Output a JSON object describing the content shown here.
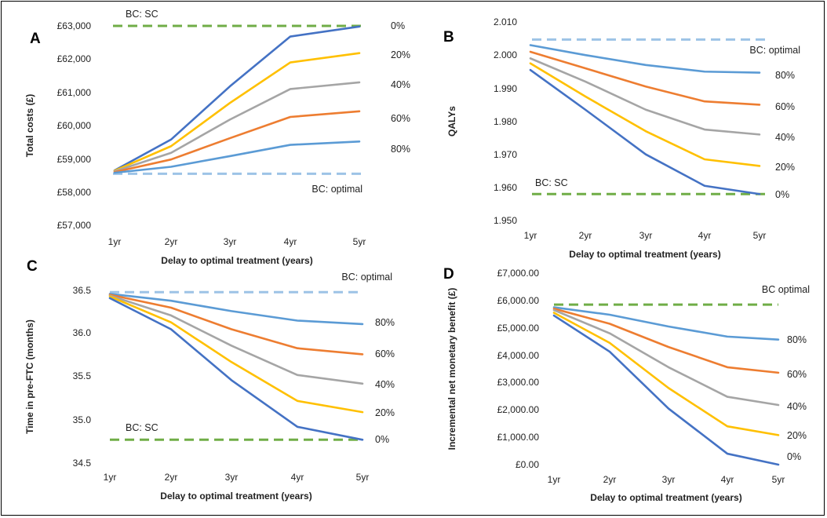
{
  "colors": {
    "0%": "#4472C4",
    "20%": "#FFC000",
    "40%": "#A5A5A5",
    "60%": "#ED7D31",
    "80%": "#5B9BD5",
    "ref_optimal": "#9DC3E6",
    "ref_sc": "#70AD47"
  },
  "chart_data": [
    {
      "id": "A",
      "type": "line",
      "panel_label": "A",
      "ylabel": "Total costs (£)",
      "xlabel": "Delay to optimal treatment (years)",
      "categories": [
        "1yr",
        "2yr",
        "3yr",
        "4yr",
        "5yr"
      ],
      "yticks": [
        "£57,000",
        "£58,000",
        "£59,000",
        "£60,000",
        "£61,000",
        "£62,000",
        "£63,000"
      ],
      "ylim": [
        57000,
        63000
      ],
      "series": [
        {
          "name": "0%",
          "color": "#4472C4",
          "values": [
            58650,
            59580,
            61180,
            62680,
            62980
          ]
        },
        {
          "name": "20%",
          "color": "#FFC000",
          "values": [
            58640,
            59380,
            60680,
            61900,
            62180
          ]
        },
        {
          "name": "40%",
          "color": "#A5A5A5",
          "values": [
            58620,
            59180,
            60180,
            61100,
            61300
          ]
        },
        {
          "name": "60%",
          "color": "#ED7D31",
          "values": [
            58600,
            58980,
            59620,
            60260,
            60430
          ]
        },
        {
          "name": "80%",
          "color": "#5B9BD5",
          "values": [
            58580,
            58760,
            59080,
            59420,
            59520
          ]
        }
      ],
      "reference_lines": [
        {
          "label": "BC: SC",
          "value": 63000,
          "color": "#70AD47"
        },
        {
          "label": "BC: optimal",
          "value": 58550,
          "color": "#9DC3E6"
        }
      ]
    },
    {
      "id": "B",
      "type": "line",
      "panel_label": "B",
      "ylabel": "QALYs",
      "xlabel": "Delay to optimal treatment (years)",
      "categories": [
        "1yr",
        "2yr",
        "3yr",
        "4yr",
        "5yr"
      ],
      "yticks": [
        "1.950",
        "1.960",
        "1.970",
        "1.980",
        "1.990",
        "2.000",
        "2.010"
      ],
      "ylim": [
        1.95,
        2.01
      ],
      "series": [
        {
          "name": "80%",
          "color": "#5B9BD5",
          "values": [
            2.003,
            2.0,
            1.997,
            1.995,
            1.9947
          ]
        },
        {
          "name": "60%",
          "color": "#ED7D31",
          "values": [
            2.001,
            1.996,
            1.9905,
            1.986,
            1.985
          ]
        },
        {
          "name": "40%",
          "color": "#A5A5A5",
          "values": [
            1.999,
            1.992,
            1.9835,
            1.9775,
            1.976
          ]
        },
        {
          "name": "20%",
          "color": "#FFC000",
          "values": [
            1.9975,
            1.9875,
            1.977,
            1.9685,
            1.9665
          ]
        },
        {
          "name": "0%",
          "color": "#4472C4",
          "values": [
            1.9955,
            1.9835,
            1.97,
            1.9605,
            1.958
          ]
        }
      ],
      "reference_lines": [
        {
          "label": "BC: optimal",
          "value": 2.0047,
          "color": "#9DC3E6"
        },
        {
          "label": "BC: SC",
          "value": 1.958,
          "color": "#70AD47"
        }
      ]
    },
    {
      "id": "C",
      "type": "line",
      "panel_label": "C",
      "ylabel": "Time in pre-FTC (months)",
      "xlabel": "Delay to optimal treatment (years)",
      "categories": [
        "1yr",
        "2yr",
        "3yr",
        "4yr",
        "5yr"
      ],
      "yticks": [
        "34.5",
        "35.0",
        "35.5",
        "36.0",
        "36.5"
      ],
      "ylim": [
        34.5,
        36.5
      ],
      "series": [
        {
          "name": "80%",
          "color": "#5B9BD5",
          "values": [
            36.46,
            36.38,
            36.26,
            36.15,
            36.11
          ]
        },
        {
          "name": "60%",
          "color": "#ED7D31",
          "values": [
            36.45,
            36.3,
            36.05,
            35.83,
            35.76
          ]
        },
        {
          "name": "40%",
          "color": "#A5A5A5",
          "values": [
            36.44,
            36.21,
            35.86,
            35.52,
            35.42
          ]
        },
        {
          "name": "20%",
          "color": "#FFC000",
          "values": [
            36.43,
            36.13,
            35.67,
            35.22,
            35.09
          ]
        },
        {
          "name": "0%",
          "color": "#4472C4",
          "values": [
            36.41,
            36.05,
            35.46,
            34.92,
            34.77
          ]
        }
      ],
      "reference_lines": [
        {
          "label": "BC: optimal",
          "value": 36.48,
          "color": "#9DC3E6"
        },
        {
          "label": "BC: SC",
          "value": 34.77,
          "color": "#70AD47"
        }
      ]
    },
    {
      "id": "D",
      "type": "line",
      "panel_label": "D",
      "ylabel": "Incremental net monetary benefit (£)",
      "xlabel": "Delay to optimal treatment (years)",
      "categories": [
        "1yr",
        "2yr",
        "3yr",
        "4yr",
        "5yr"
      ],
      "yticks": [
        "£0.00",
        "£1,000.00",
        "£2,000.00",
        "£3,000.00",
        "£4,000.00",
        "£5,000.00",
        "£6,000.00",
        "£7,000.00"
      ],
      "ylim": [
        0,
        7000
      ],
      "series": [
        {
          "name": "80%",
          "color": "#5B9BD5",
          "values": [
            5750,
            5480,
            5050,
            4680,
            4570
          ]
        },
        {
          "name": "60%",
          "color": "#ED7D31",
          "values": [
            5700,
            5150,
            4300,
            3560,
            3360
          ]
        },
        {
          "name": "40%",
          "color": "#A5A5A5",
          "values": [
            5650,
            4800,
            3560,
            2480,
            2180
          ]
        },
        {
          "name": "20%",
          "color": "#FFC000",
          "values": [
            5550,
            4450,
            2800,
            1400,
            1080
          ]
        },
        {
          "name": "0%",
          "color": "#4472C4",
          "values": [
            5450,
            4130,
            2050,
            400,
            0
          ]
        }
      ],
      "reference_lines": [
        {
          "label": "BC optimal",
          "value": 5850,
          "color": "#70AD47"
        }
      ]
    }
  ]
}
